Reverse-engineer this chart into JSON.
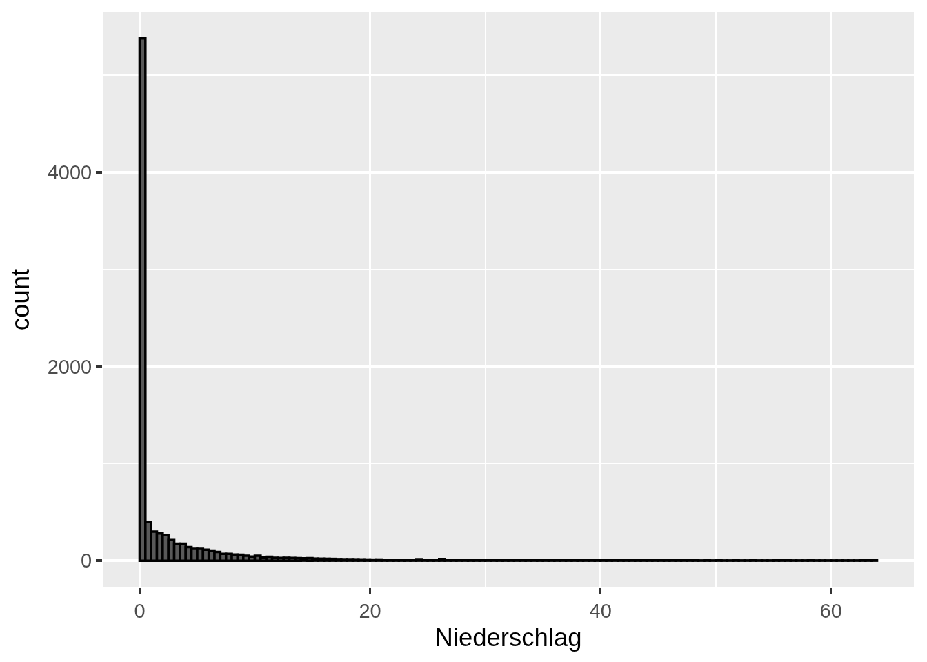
{
  "chart_data": {
    "type": "histogram",
    "xlabel": "Niederschlag",
    "ylabel": "count",
    "color": "#595959",
    "grid": true,
    "xlim": [
      -3.2,
      67.2
    ],
    "xticks": [
      0,
      {
        "value": 10,
        "label": null
      },
      20,
      {
        "value": 30,
        "label": null
      },
      40,
      {
        "value": 50,
        "label": null
      },
      60
    ],
    "ylim": [
      -269,
      5649
    ],
    "yticks": [
      0,
      {
        "value": 1000,
        "label": null
      },
      2000,
      {
        "value": 3000,
        "label": null
      },
      4000,
      {
        "value": 5000,
        "label": null
      }
    ],
    "bins": [
      0,
      0.5,
      1,
      1.5,
      2,
      2.5,
      3,
      3.5,
      4,
      4.5,
      5,
      5.5,
      6,
      6.5,
      7,
      7.5,
      8,
      8.5,
      9,
      9.5,
      10,
      10.5,
      11,
      11.5,
      12,
      12.5,
      13,
      13.5,
      14,
      14.5,
      15,
      15.5,
      16,
      16.5,
      17,
      17.5,
      18,
      18.5,
      19,
      19.5,
      20,
      20.5,
      21,
      21.5,
      22,
      22.5,
      23,
      23.5,
      24,
      24.5,
      25,
      25.5,
      26,
      26.5,
      27,
      27.5,
      28,
      28.5,
      29,
      29.5,
      30,
      30.5,
      31,
      31.5,
      32,
      32.5,
      33,
      33.5,
      34,
      34.5,
      35,
      35.5,
      36,
      36.5,
      37,
      37.5,
      38,
      38.5,
      39,
      39.5,
      40,
      40.5,
      41,
      41.5,
      42,
      42.5,
      43,
      43.5,
      44,
      44.5,
      45,
      45.5,
      46,
      46.5,
      47,
      47.5,
      48,
      48.5,
      49,
      49.5,
      50,
      50.5,
      51,
      51.5,
      52,
      52.5,
      53,
      53.5,
      54,
      54.5,
      55,
      55.5,
      56,
      56.5,
      57,
      57.5,
      58,
      58.5,
      59,
      59.5,
      60,
      60.5,
      61,
      61.5,
      62,
      62.5,
      63,
      63.5,
      64
    ],
    "values": [
      5380,
      400,
      300,
      280,
      265,
      220,
      175,
      175,
      140,
      128,
      128,
      112,
      104,
      90,
      70,
      70,
      63,
      61,
      50,
      42,
      50,
      32,
      40,
      30,
      28,
      30,
      27,
      26,
      24,
      25,
      21,
      20,
      19,
      18,
      16,
      15,
      15,
      14,
      13,
      12,
      11,
      12,
      10,
      10,
      9,
      10,
      8,
      9,
      15,
      8,
      7,
      6,
      17,
      7,
      6,
      6,
      5,
      6,
      5,
      5,
      6,
      5,
      5,
      5,
      4,
      5,
      5,
      4,
      4,
      5,
      8,
      7,
      4,
      4,
      4,
      5,
      6,
      5,
      4,
      3,
      4,
      3,
      3,
      3,
      3,
      4,
      3,
      5,
      6,
      3,
      3,
      3,
      3,
      6,
      5,
      3,
      3,
      2,
      3,
      2,
      3,
      2,
      2,
      3,
      2,
      2,
      3,
      2,
      2,
      2,
      3,
      4,
      5,
      2,
      2,
      2,
      3,
      2,
      2,
      2,
      2,
      2,
      2,
      2,
      2,
      3,
      5,
      4
    ]
  }
}
